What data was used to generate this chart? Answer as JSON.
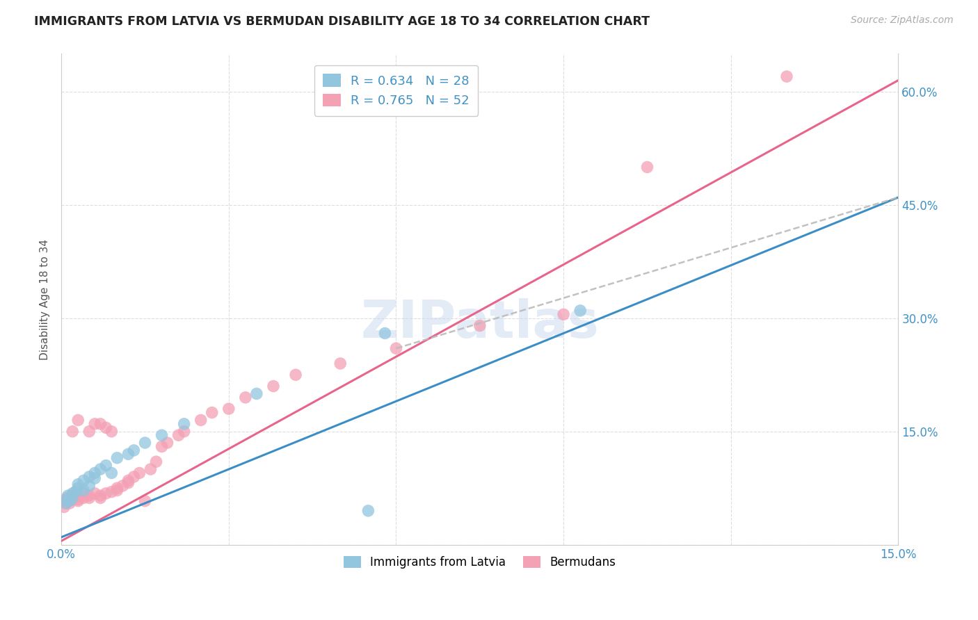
{
  "title": "IMMIGRANTS FROM LATVIA VS BERMUDAN DISABILITY AGE 18 TO 34 CORRELATION CHART",
  "source": "Source: ZipAtlas.com",
  "ylabel": "Disability Age 18 to 34",
  "xlim": [
    0.0,
    0.15
  ],
  "ylim": [
    0.0,
    0.65
  ],
  "x_ticks": [
    0.0,
    0.03,
    0.06,
    0.09,
    0.12,
    0.15
  ],
  "x_tick_labels": [
    "0.0%",
    "",
    "",
    "",
    "",
    "15.0%"
  ],
  "y_ticks": [
    0.0,
    0.15,
    0.3,
    0.45,
    0.6
  ],
  "y_tick_labels": [
    "",
    "15.0%",
    "30.0%",
    "45.0%",
    "60.0%"
  ],
  "watermark": "ZIPatlas",
  "legend_r1": "R = 0.634",
  "legend_n1": "N = 28",
  "legend_r2": "R = 0.765",
  "legend_n2": "N = 52",
  "color_blue": "#92c5de",
  "color_pink": "#f4a0b5",
  "color_blue_line": "#3b8ec5",
  "color_pink_line": "#e8648a",
  "color_dashed_line": "#bbbbbb",
  "color_axis_labels": "#4292c6",
  "color_grid": "#dddddd",
  "blue_line_x0": 0.0,
  "blue_line_y0": 0.01,
  "blue_line_x1": 0.15,
  "blue_line_y1": 0.46,
  "pink_line_x0": 0.0,
  "pink_line_y0": 0.005,
  "pink_line_x1": 0.15,
  "pink_line_y1": 0.615,
  "dashed_line_x0": 0.06,
  "dashed_line_y0": 0.26,
  "dashed_line_x1": 0.15,
  "dashed_line_y1": 0.46,
  "latvia_x": [
    0.0008,
    0.001,
    0.0012,
    0.0015,
    0.002,
    0.002,
    0.0025,
    0.003,
    0.003,
    0.004,
    0.004,
    0.005,
    0.005,
    0.006,
    0.006,
    0.007,
    0.008,
    0.009,
    0.01,
    0.012,
    0.013,
    0.015,
    0.018,
    0.022,
    0.035,
    0.055,
    0.058,
    0.093
  ],
  "latvia_y": [
    0.055,
    0.06,
    0.065,
    0.058,
    0.062,
    0.068,
    0.07,
    0.075,
    0.08,
    0.072,
    0.085,
    0.078,
    0.09,
    0.088,
    0.095,
    0.1,
    0.105,
    0.095,
    0.115,
    0.12,
    0.125,
    0.135,
    0.145,
    0.16,
    0.2,
    0.045,
    0.28,
    0.31
  ],
  "bermuda_x": [
    0.0005,
    0.0008,
    0.001,
    0.001,
    0.0012,
    0.0015,
    0.002,
    0.002,
    0.002,
    0.003,
    0.003,
    0.003,
    0.004,
    0.004,
    0.005,
    0.005,
    0.005,
    0.006,
    0.006,
    0.007,
    0.007,
    0.007,
    0.008,
    0.008,
    0.009,
    0.009,
    0.01,
    0.01,
    0.011,
    0.012,
    0.012,
    0.013,
    0.014,
    0.015,
    0.016,
    0.017,
    0.018,
    0.019,
    0.021,
    0.022,
    0.025,
    0.027,
    0.03,
    0.033,
    0.038,
    0.042,
    0.05,
    0.06,
    0.075,
    0.09,
    0.105,
    0.13
  ],
  "bermuda_y": [
    0.05,
    0.055,
    0.058,
    0.062,
    0.06,
    0.055,
    0.06,
    0.065,
    0.15,
    0.058,
    0.06,
    0.165,
    0.062,
    0.068,
    0.062,
    0.065,
    0.15,
    0.16,
    0.068,
    0.062,
    0.065,
    0.16,
    0.068,
    0.155,
    0.07,
    0.15,
    0.072,
    0.075,
    0.078,
    0.082,
    0.085,
    0.09,
    0.095,
    0.058,
    0.1,
    0.11,
    0.13,
    0.135,
    0.145,
    0.15,
    0.165,
    0.175,
    0.18,
    0.195,
    0.21,
    0.225,
    0.24,
    0.26,
    0.29,
    0.305,
    0.5,
    0.62
  ]
}
